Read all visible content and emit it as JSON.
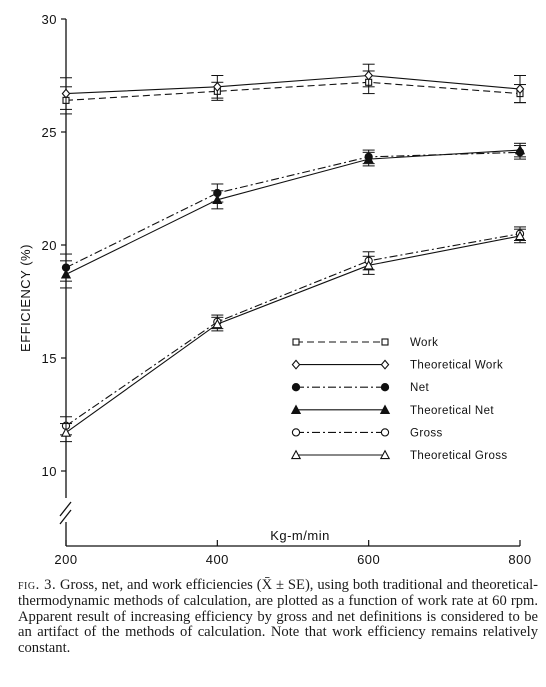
{
  "chart_data": {
    "type": "line",
    "xlabel": "Kg-m/min",
    "ylabel": "EFFICIENCY (%)",
    "x": [
      200,
      400,
      600,
      800
    ],
    "x_ticks": [
      "200",
      "400",
      "600",
      "800"
    ],
    "y_ticks": [
      "10",
      "15",
      "20",
      "25",
      "30"
    ],
    "xlim": [
      200,
      800
    ],
    "ylim": [
      7,
      30
    ],
    "y_axis_break": true,
    "grid": false,
    "legend_placement": "lower-right",
    "series": [
      {
        "name": "Work",
        "values": [
          26.4,
          26.8,
          27.2,
          26.7
        ],
        "se": [
          0.6,
          0.4,
          0.5,
          0.4
        ],
        "marker": "open-square",
        "dash": "dashed"
      },
      {
        "name": "Theoretical Work",
        "values": [
          26.7,
          27.0,
          27.5,
          26.9
        ],
        "se": [
          0.7,
          0.5,
          0.5,
          0.6
        ],
        "marker": "open-diamond",
        "dash": "solid"
      },
      {
        "name": "Net",
        "values": [
          19.0,
          22.3,
          23.9,
          24.1
        ],
        "se": [
          0.6,
          0.4,
          0.3,
          0.3
        ],
        "marker": "filled-circle",
        "dash": "dashdot"
      },
      {
        "name": "Theoretical Net",
        "values": [
          18.7,
          22.0,
          23.8,
          24.2
        ],
        "se": [
          0.6,
          0.4,
          0.3,
          0.3
        ],
        "marker": "filled-triangle",
        "dash": "solid"
      },
      {
        "name": "Gross",
        "values": [
          12.0,
          16.6,
          19.3,
          20.5
        ],
        "se": [
          0.4,
          0.3,
          0.4,
          0.3
        ],
        "marker": "open-circle",
        "dash": "dashdot"
      },
      {
        "name": "Theoretical Gross",
        "values": [
          11.7,
          16.5,
          19.1,
          20.4
        ],
        "se": [
          0.4,
          0.3,
          0.4,
          0.3
        ],
        "marker": "open-triangle",
        "dash": "solid"
      }
    ]
  },
  "caption": {
    "label": "fig. 3.",
    "text": "Gross, net, and work efficiencies (X̄ ± SE), using both traditional and theoretical-thermodynamic methods of calculation, are plotted as a function of work rate at 60 rpm. Apparent result of increasing efficiency by gross and net definitions is considered to be an artifact of the methods of calculation. Note that work efficiency remains relatively constant."
  }
}
